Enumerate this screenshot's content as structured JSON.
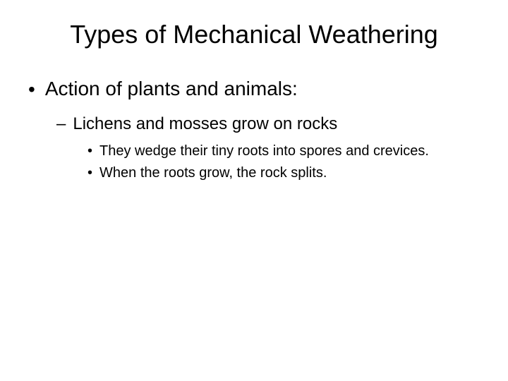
{
  "background_color": "#ffffff",
  "text_color": "#000000",
  "font_family": "Arial",
  "title": {
    "text": "Types of Mechanical Weathering",
    "fontsize": 36
  },
  "bullets": {
    "level1": {
      "marker": "•",
      "fontsize": 28,
      "items": [
        {
          "text": "Action of plants and animals:"
        }
      ]
    },
    "level2": {
      "marker": "–",
      "fontsize": 24,
      "items": [
        {
          "text": "Lichens and mosses grow on rocks"
        }
      ]
    },
    "level3": {
      "marker": "•",
      "fontsize": 20,
      "items": [
        {
          "text": "They wedge their tiny roots into spores and crevices."
        },
        {
          "text": "When the roots grow, the rock splits."
        }
      ]
    }
  }
}
